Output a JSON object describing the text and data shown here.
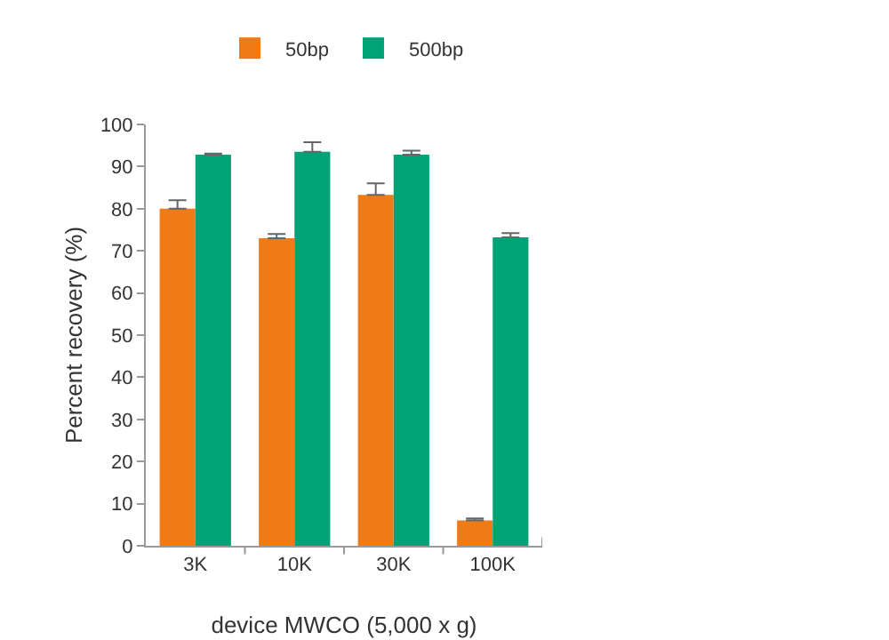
{
  "chart_data": {
    "type": "bar",
    "xlabel": "device MWCO (5,000 x g)",
    "ylabel": "Percent recovery (%)",
    "categories": [
      "3K",
      "10K",
      "30K",
      "100K"
    ],
    "series": [
      {
        "name": "50bp",
        "color": "#ee7b15",
        "values": [
          80,
          73,
          83.3,
          6
        ],
        "errors": [
          [
            80,
            82
          ],
          [
            73,
            74
          ],
          [
            83.3,
            86
          ],
          [
            6,
            6.5
          ]
        ]
      },
      {
        "name": "500bp",
        "color": "#00a375",
        "values": [
          92.8,
          93.5,
          92.8,
          73.2
        ],
        "errors": [
          [
            92.8,
            93.1
          ],
          [
            93.5,
            95.8
          ],
          [
            92.8,
            93.8
          ],
          [
            73.2,
            74.2
          ]
        ]
      }
    ],
    "ylim": [
      0,
      100
    ],
    "yticks": [
      0,
      10,
      20,
      30,
      40,
      50,
      60,
      70,
      80,
      90,
      100
    ],
    "grid": false,
    "legend": "top"
  }
}
